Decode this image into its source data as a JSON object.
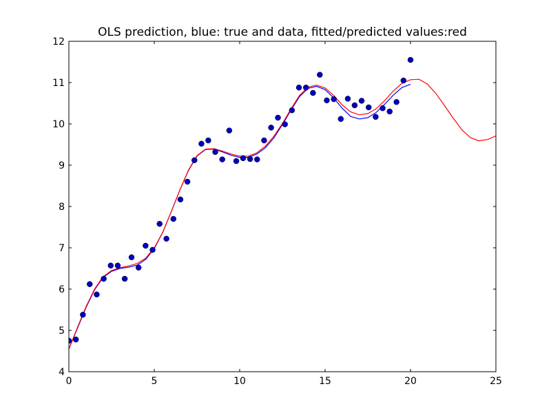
{
  "chart_data": {
    "type": "line",
    "title": "OLS prediction, blue: true and data, fitted/predicted values:red",
    "xlabel": "",
    "ylabel": "",
    "xlim": [
      0,
      25
    ],
    "ylim": [
      4,
      12
    ],
    "grid": false,
    "x_ticks": [
      0,
      5,
      10,
      15,
      20,
      25
    ],
    "y_ticks": [
      4,
      5,
      6,
      7,
      8,
      9,
      10,
      11,
      12
    ],
    "colors": {
      "data": "#0000bf",
      "true": "#0000ff",
      "fitted": "#ff0000"
    },
    "series": [
      {
        "kind": "scatter",
        "color_key": "data",
        "x": [
          0.0,
          0.41,
          0.82,
          1.22,
          1.63,
          2.04,
          2.45,
          2.86,
          3.27,
          3.67,
          4.08,
          4.49,
          4.9,
          5.31,
          5.71,
          6.12,
          6.53,
          6.94,
          7.35,
          7.76,
          8.16,
          8.57,
          8.98,
          9.39,
          9.8,
          10.2,
          10.61,
          11.02,
          11.43,
          11.84,
          12.24,
          12.65,
          13.06,
          13.47,
          13.88,
          14.29,
          14.69,
          15.1,
          15.51,
          15.92,
          16.33,
          16.73,
          17.14,
          17.55,
          17.96,
          18.37,
          18.78,
          19.18,
          19.59,
          20.0
        ],
        "y": [
          4.75,
          4.78,
          5.38,
          6.12,
          5.87,
          6.25,
          6.57,
          6.57,
          6.25,
          6.77,
          6.52,
          7.05,
          6.95,
          7.58,
          7.22,
          7.7,
          8.17,
          8.6,
          9.12,
          9.52,
          9.6,
          9.32,
          9.14,
          9.84,
          9.1,
          9.17,
          9.15,
          9.14,
          9.6,
          9.91,
          10.15,
          9.99,
          10.33,
          10.88,
          10.88,
          10.75,
          11.19,
          10.57,
          10.6,
          10.12,
          10.61,
          10.45,
          10.56,
          10.4,
          10.17,
          10.38,
          10.3,
          10.53,
          11.05,
          11.55
        ]
      },
      {
        "kind": "line",
        "color_key": "true",
        "x": [
          0,
          0.5,
          1,
          1.5,
          2,
          2.5,
          3,
          3.5,
          4,
          4.5,
          5,
          5.5,
          6,
          6.5,
          7,
          7.5,
          8,
          8.5,
          9,
          9.5,
          10,
          10.5,
          11,
          11.5,
          12,
          12.5,
          13,
          13.5,
          14,
          14.5,
          15,
          15.5,
          16,
          16.5,
          17,
          17.5,
          18,
          18.5,
          19,
          19.5,
          20
        ],
        "y": [
          4.55,
          5.05,
          5.55,
          5.98,
          6.28,
          6.43,
          6.5,
          6.53,
          6.58,
          6.72,
          6.98,
          7.38,
          7.88,
          8.4,
          8.87,
          9.22,
          9.38,
          9.39,
          9.32,
          9.24,
          9.19,
          9.19,
          9.27,
          9.42,
          9.66,
          9.98,
          10.33,
          10.66,
          10.86,
          10.91,
          10.83,
          10.63,
          10.38,
          10.18,
          10.12,
          10.15,
          10.28,
          10.48,
          10.7,
          10.88,
          10.96
        ]
      },
      {
        "kind": "line",
        "color_key": "fitted",
        "x": [
          0,
          0.5,
          1,
          1.5,
          2,
          2.5,
          3,
          3.5,
          4,
          4.5,
          5,
          5.5,
          6,
          6.5,
          7,
          7.5,
          8,
          8.5,
          9,
          9.5,
          10,
          10.5,
          11,
          11.5,
          12,
          12.5,
          13,
          13.5,
          14,
          14.5,
          15,
          15.5,
          16,
          16.5,
          17,
          17.5,
          18,
          18.5,
          19,
          19.5,
          20,
          20.5,
          21,
          21.5,
          22,
          22.5,
          23,
          23.5,
          24,
          24.5,
          25
        ],
        "y": [
          4.55,
          5.07,
          5.57,
          6.0,
          6.3,
          6.45,
          6.52,
          6.56,
          6.62,
          6.75,
          7.0,
          7.38,
          7.88,
          8.4,
          8.88,
          9.23,
          9.39,
          9.4,
          9.34,
          9.27,
          9.22,
          9.22,
          9.3,
          9.46,
          9.7,
          10.01,
          10.36,
          10.69,
          10.89,
          10.94,
          10.87,
          10.69,
          10.46,
          10.29,
          10.22,
          10.25,
          10.37,
          10.57,
          10.8,
          10.98,
          11.07,
          11.08,
          10.96,
          10.73,
          10.44,
          10.14,
          9.86,
          9.67,
          9.59,
          9.62,
          9.71
        ]
      }
    ]
  }
}
